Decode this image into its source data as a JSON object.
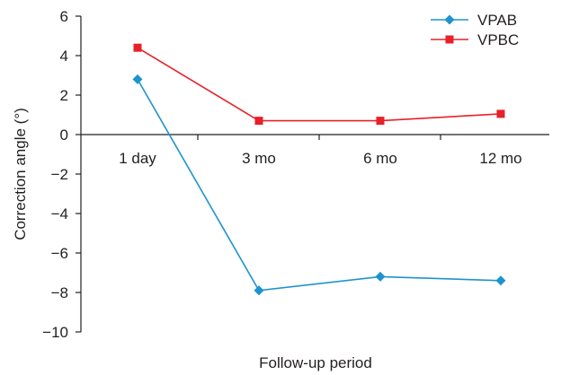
{
  "chart_data": {
    "type": "line",
    "title": "",
    "xlabel": "Follow-up period",
    "ylabel": "Correction angle (°)",
    "categories": [
      "1 day",
      "3 mo",
      "6 mo",
      "12 mo"
    ],
    "ylim": [
      -10,
      6
    ],
    "yticks": [
      "6",
      "4",
      "2",
      "0",
      "−2",
      "−4",
      "−6",
      "−8",
      "−10"
    ],
    "grid": false,
    "legend_position": "top-right",
    "series": [
      {
        "name": "VPAB",
        "color": "#1e93cf",
        "marker": "diamond",
        "values": [
          2.8,
          -7.9,
          -7.2,
          -7.4
        ]
      },
      {
        "name": "VPBC",
        "color": "#e8202a",
        "marker": "square",
        "values": [
          4.4,
          0.7,
          0.7,
          1.05
        ]
      }
    ]
  }
}
